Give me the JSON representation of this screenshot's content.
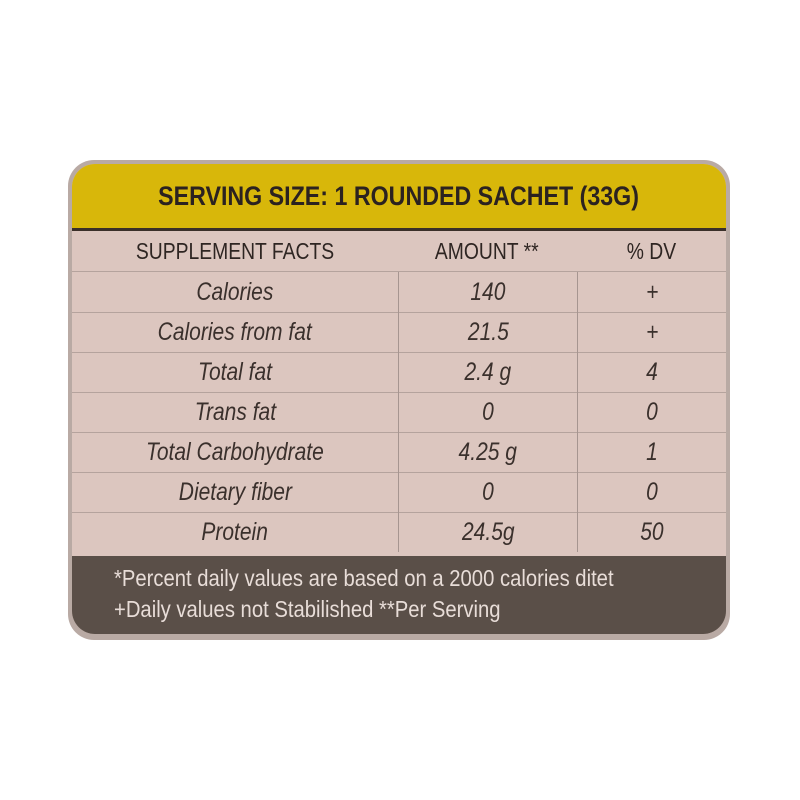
{
  "serving_size": "SERVING SIZE: 1 ROUNDED SACHET (33G)",
  "table": {
    "headers": [
      "SUPPLEMENT FACTS",
      "AMOUNT **",
      "% DV"
    ],
    "rows": [
      [
        "Calories",
        "140",
        "+"
      ],
      [
        "Calories from fat",
        "21.5",
        "+"
      ],
      [
        "Total fat",
        "2.4 g",
        "4"
      ],
      [
        "Trans fat",
        "0",
        "0"
      ],
      [
        "Total Carbohydrate",
        "4.25 g",
        "1"
      ],
      [
        "Dietary fiber",
        "0",
        "0"
      ],
      [
        "Protein",
        "24.5g",
        "50"
      ]
    ]
  },
  "footer": {
    "line1": "*Percent daily values are based on a 2000 calories ditet",
    "line2": "+Daily values not Stabilished  **Per Serving"
  },
  "colors": {
    "header": "#d8b70a",
    "body": "#dcc6bf",
    "footer": "#5a4f48"
  }
}
